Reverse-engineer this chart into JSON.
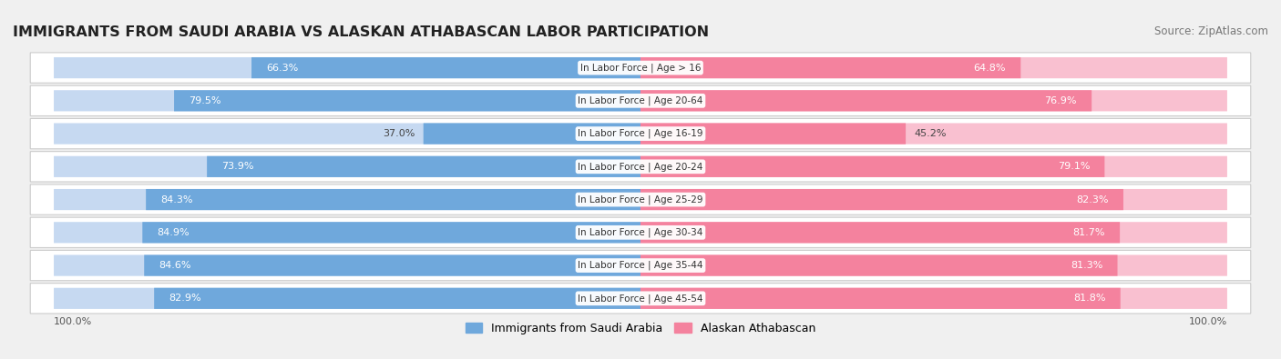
{
  "title": "IMMIGRANTS FROM SAUDI ARABIA VS ALASKAN ATHABASCAN LABOR PARTICIPATION",
  "source": "Source: ZipAtlas.com",
  "categories": [
    "In Labor Force | Age > 16",
    "In Labor Force | Age 20-64",
    "In Labor Force | Age 16-19",
    "In Labor Force | Age 20-24",
    "In Labor Force | Age 25-29",
    "In Labor Force | Age 30-34",
    "In Labor Force | Age 35-44",
    "In Labor Force | Age 45-54"
  ],
  "saudi_values": [
    66.3,
    79.5,
    37.0,
    73.9,
    84.3,
    84.9,
    84.6,
    82.9
  ],
  "alaskan_values": [
    64.8,
    76.9,
    45.2,
    79.1,
    82.3,
    81.7,
    81.3,
    81.8
  ],
  "saudi_color": "#6fa8dc",
  "saudi_color_light": "#c6d9f1",
  "alaskan_color": "#f4829e",
  "alaskan_color_light": "#f9c0d0",
  "background_color": "#f0f0f0",
  "row_bg_color": "#ffffff",
  "title_fontsize": 11.5,
  "source_fontsize": 8.5,
  "bar_label_fontsize": 8,
  "category_fontsize": 7.5,
  "legend_fontsize": 9,
  "axis_label_fontsize": 8,
  "max_val": 100.0
}
